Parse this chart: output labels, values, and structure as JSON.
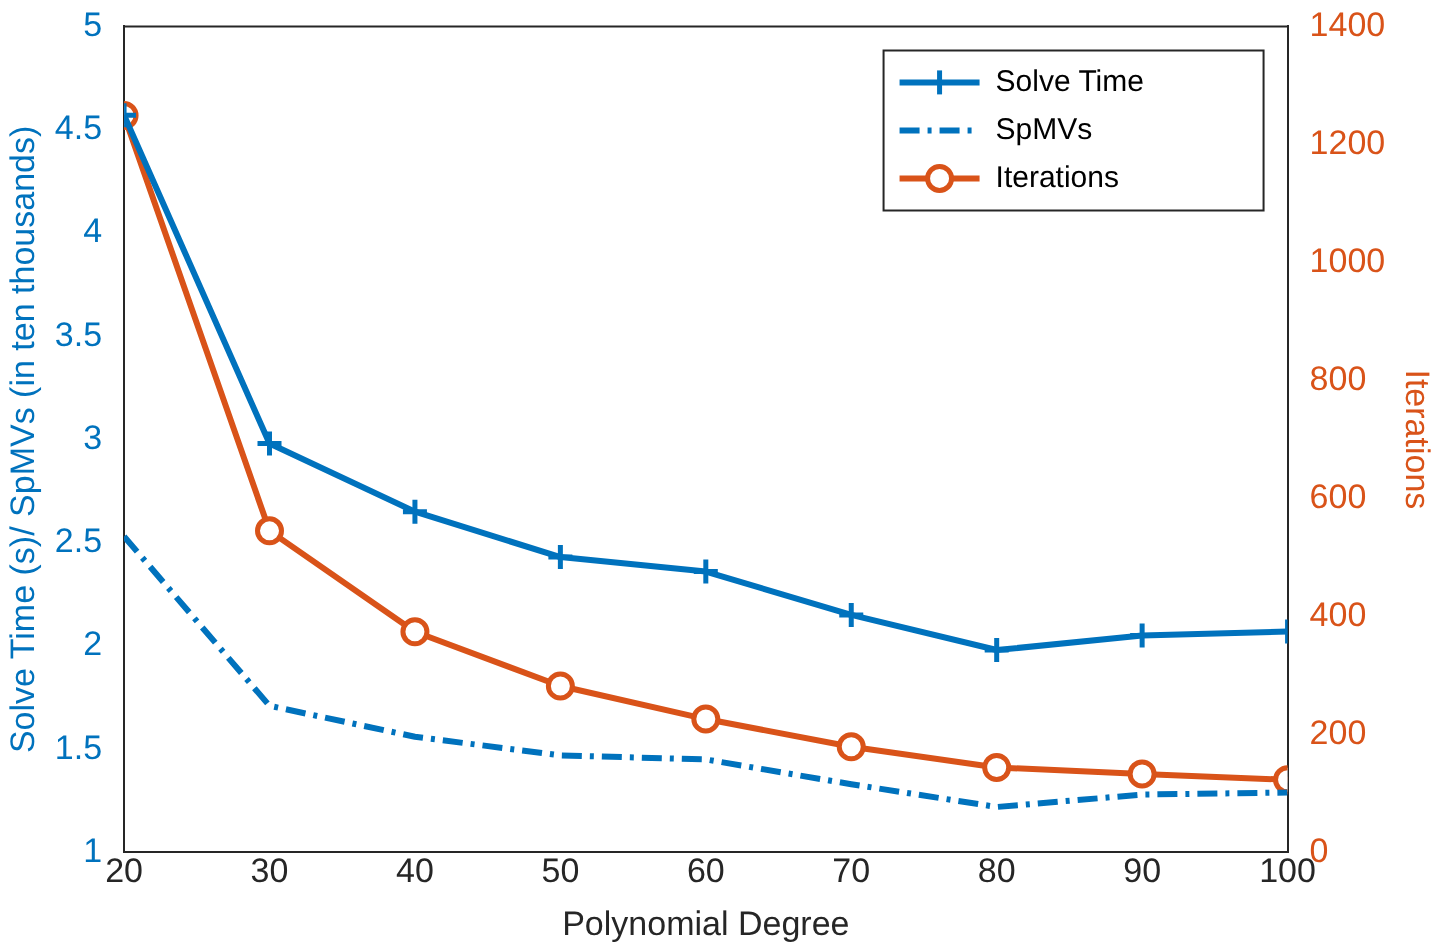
{
  "chart_data": {
    "type": "line",
    "xlabel": "Polynomial Degree",
    "ylabel": "Solve Time (s)/ SpMVs (in ten thousands)",
    "y2label": "Iterations",
    "x": [
      20,
      30,
      40,
      50,
      60,
      70,
      80,
      90,
      100
    ],
    "xlim": [
      20,
      100
    ],
    "xticks": [
      20,
      30,
      40,
      50,
      60,
      70,
      80,
      90,
      100
    ],
    "ylim": [
      1,
      5
    ],
    "yticks": [
      1,
      1.5,
      2,
      2.5,
      3,
      3.5,
      4,
      4.5,
      5
    ],
    "y2lim": [
      0,
      1400
    ],
    "y2ticks": [
      0,
      200,
      400,
      600,
      800,
      1000,
      1200,
      1400
    ],
    "grid": false,
    "legend": "top right",
    "series": [
      {
        "name": "Solve Time",
        "color": "#0072bd",
        "marker": "cross",
        "line_style": "solid",
        "values": [
          4.57,
          2.98,
          2.65,
          2.43,
          2.36,
          2.15,
          1.98,
          2.05,
          2.07
        ]
      },
      {
        "name": "SpMVs",
        "color": "#0072bd",
        "marker": "none",
        "line_style": "dashed",
        "values": [
          2.53,
          1.71,
          1.56,
          1.47,
          1.45,
          1.33,
          1.22,
          1.28,
          1.29
        ]
      },
      {
        "name": "Iterations",
        "color": "#d95319",
        "marker": "circle",
        "line_style": "solid",
        "axis": "y2",
        "values": [
          1249,
          545,
          374,
          282,
          226,
          179,
          144,
          133,
          123
        ]
      }
    ]
  }
}
